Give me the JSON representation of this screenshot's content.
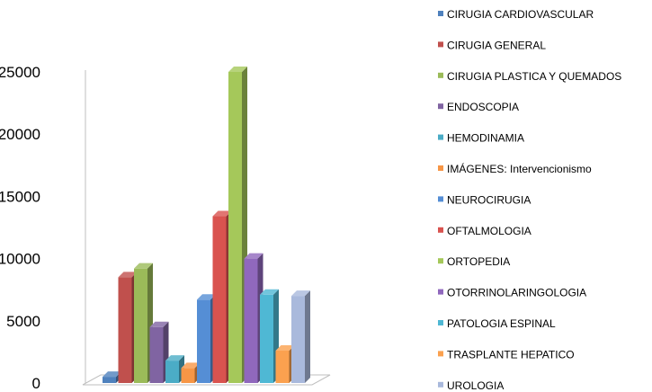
{
  "chart_data": {
    "type": "bar",
    "ylim": [
      0,
      25000
    ],
    "yticks": [
      "0",
      "5000",
      "10000",
      "15000",
      "20000",
      "25000"
    ],
    "series": [
      {
        "name": "CIRUGIA CARDIOVASCULAR",
        "color": "#4f81bd",
        "value": 500
      },
      {
        "name": "CIRUGIA GENERAL",
        "color": "#c0504d",
        "value": 8500
      },
      {
        "name": "CIRUGIA PLASTICA  Y QUEMADOS",
        "color": "#9bbb59",
        "value": 9200
      },
      {
        "name": "ENDOSCOPIA",
        "color": "#8064a2",
        "value": 4500
      },
      {
        "name": "HEMODINAMIA",
        "color": "#4bacc6",
        "value": 1800
      },
      {
        "name": "IMÁGENES: Intervencionismo",
        "color": "#f79646",
        "value": 1200
      },
      {
        "name": "NEUROCIRUGIA",
        "color": "#558ed5",
        "value": 6700
      },
      {
        "name": "OFTALMOLOGIA",
        "color": "#d9534f",
        "value": 13400
      },
      {
        "name": "ORTOPEDIA",
        "color": "#a5c85a",
        "value": 25000
      },
      {
        "name": "OTORRINOLARINGOLOGIA",
        "color": "#9068bd",
        "value": 10000
      },
      {
        "name": "PATOLOGIA ESPINAL",
        "color": "#4fb8d4",
        "value": 7100
      },
      {
        "name": "TRASPLANTE HEPATICO",
        "color": "#fba14f",
        "value": 2600
      },
      {
        "name": "UROLOGIA",
        "color": "#a9b9dc",
        "value": 7000
      }
    ]
  }
}
